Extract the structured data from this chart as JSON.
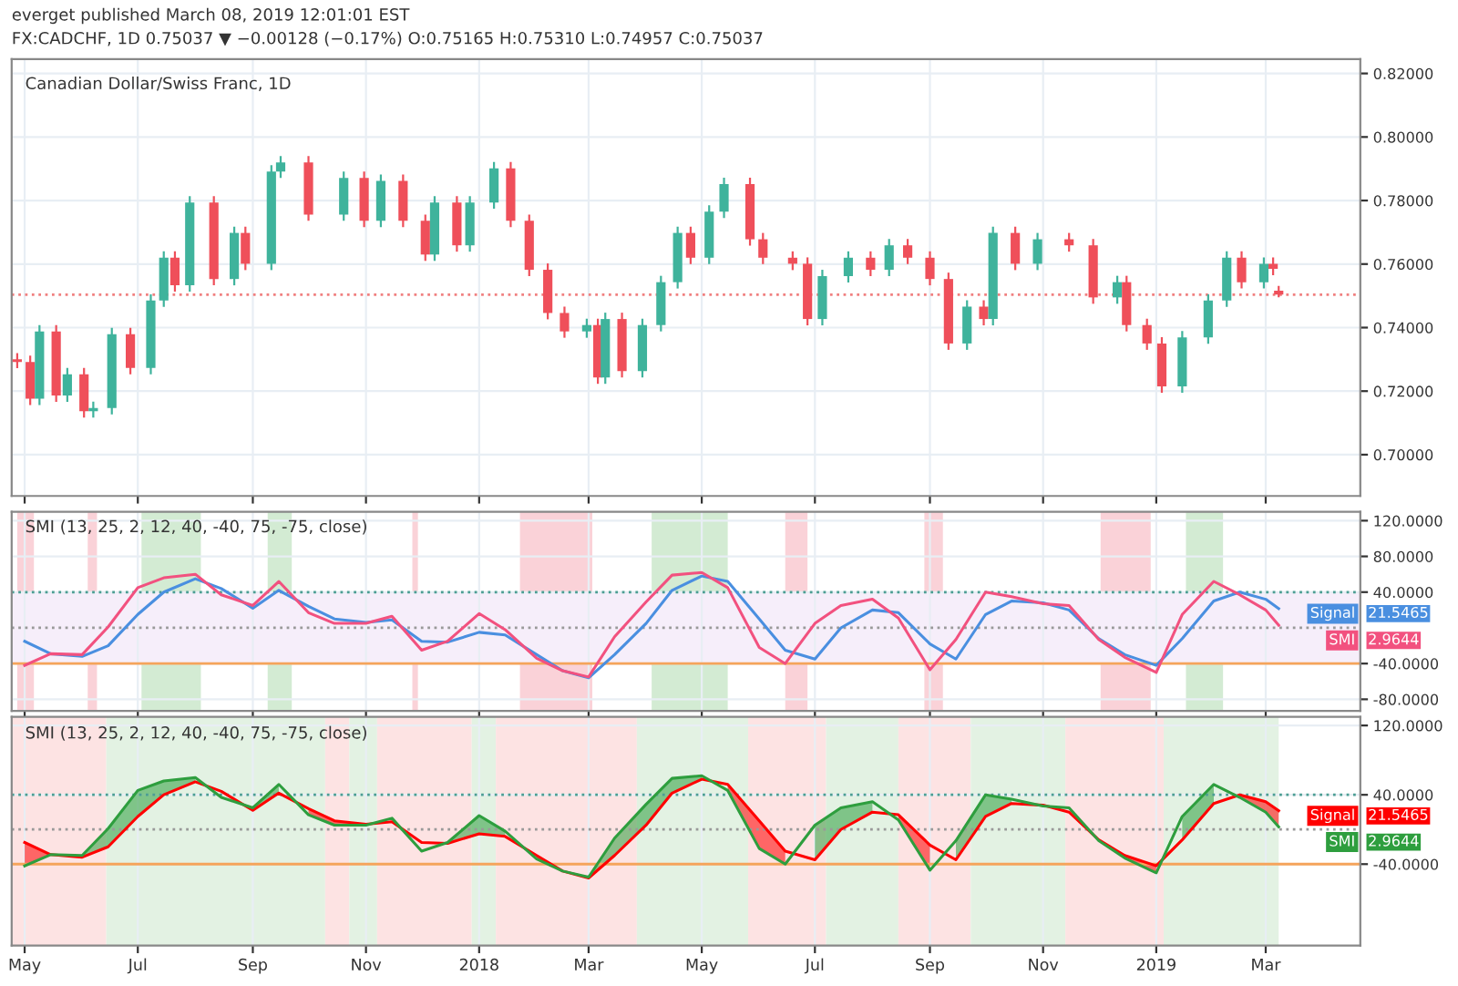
{
  "chart_data": [
    {
      "type": "candlestick",
      "title": "Canadian Dollar/Swiss Franc, 1D",
      "annotations": [
        "everget published March 08, 2019 12:01:01 EST",
        "FX:CADCHF, 1D 0.75037 ▼ −0.00128 (−0.17%) O:0.75165 H:0.75310 L:0.74957 C:0.75037"
      ],
      "x": [
        "2017-04-27",
        "2017-05-04",
        "2017-05-09",
        "2017-05-18",
        "2017-05-24",
        "2017-06-02",
        "2017-06-07",
        "2017-06-17",
        "2017-06-27",
        "2017-07-08",
        "2017-07-15",
        "2017-07-21",
        "2017-07-29",
        "2017-08-11",
        "2017-08-22",
        "2017-08-28",
        "2017-09-11",
        "2017-09-16",
        "2017-10-01",
        "2017-10-20",
        "2017-10-31",
        "2017-11-09",
        "2017-11-21",
        "2017-12-03",
        "2017-12-08",
        "2017-12-20",
        "2017-12-27",
        "2018-01-09",
        "2018-01-18",
        "2018-01-28",
        "2018-02-07",
        "2018-02-16",
        "2018-02-28",
        "2018-03-06",
        "2018-03-10",
        "2018-03-19",
        "2018-03-30",
        "2018-04-09",
        "2018-04-18",
        "2018-04-25",
        "2018-05-05",
        "2018-05-13",
        "2018-05-27",
        "2018-06-03",
        "2018-06-19",
        "2018-06-27",
        "2018-07-05",
        "2018-07-19",
        "2018-07-31",
        "2018-08-10",
        "2018-08-20",
        "2018-09-01",
        "2018-09-11",
        "2018-09-21",
        "2018-09-30",
        "2018-10-05",
        "2018-10-17",
        "2018-10-29",
        "2018-11-15",
        "2018-11-28",
        "2018-12-11",
        "2018-12-16",
        "2018-12-27",
        "2019-01-04",
        "2019-01-15",
        "2019-01-29",
        "2019-02-08",
        "2019-02-16",
        "2019-02-28",
        "2019-03-05",
        "2019-03-08"
      ],
      "ohlc": [
        [
          0.73,
          0.732,
          0.7272,
          0.7292
        ],
        [
          0.7292,
          0.7312,
          0.7156,
          0.7176
        ],
        [
          0.7176,
          0.7408,
          0.7156,
          0.7388
        ],
        [
          0.7388,
          0.7408,
          0.7166,
          0.7186
        ],
        [
          0.7186,
          0.7273,
          0.7166,
          0.7253
        ],
        [
          0.7253,
          0.7273,
          0.7117,
          0.7137
        ],
        [
          0.7137,
          0.7167,
          0.7117,
          0.7147
        ],
        [
          0.7147,
          0.7399,
          0.7127,
          0.7379
        ],
        [
          0.7379,
          0.7399,
          0.7253,
          0.7273
        ],
        [
          0.7273,
          0.7505,
          0.7253,
          0.7485
        ],
        [
          0.7485,
          0.764,
          0.7465,
          0.762
        ],
        [
          0.762,
          0.764,
          0.7513,
          0.7533
        ],
        [
          0.7533,
          0.7814,
          0.7513,
          0.7794
        ],
        [
          0.7794,
          0.7814,
          0.7533,
          0.7553
        ],
        [
          0.7553,
          0.7718,
          0.7533,
          0.7698
        ],
        [
          0.7698,
          0.7718,
          0.7581,
          0.7601
        ],
        [
          0.7601,
          0.7911,
          0.7581,
          0.7891
        ],
        [
          0.7891,
          0.794,
          0.7871,
          0.792
        ],
        [
          0.792,
          0.794,
          0.7736,
          0.7756
        ],
        [
          0.7756,
          0.7891,
          0.7736,
          0.7871
        ],
        [
          0.7871,
          0.7891,
          0.7716,
          0.7736
        ],
        [
          0.7736,
          0.7882,
          0.7716,
          0.7862
        ],
        [
          0.7862,
          0.7882,
          0.7716,
          0.7736
        ],
        [
          0.7736,
          0.7756,
          0.761,
          0.763
        ],
        [
          0.763,
          0.7814,
          0.761,
          0.7794
        ],
        [
          0.7794,
          0.7814,
          0.7639,
          0.7659
        ],
        [
          0.7659,
          0.7814,
          0.7639,
          0.7794
        ],
        [
          0.7794,
          0.7921,
          0.7774,
          0.7901
        ],
        [
          0.7901,
          0.7921,
          0.7716,
          0.7736
        ],
        [
          0.7736,
          0.7756,
          0.7562,
          0.7582
        ],
        [
          0.7582,
          0.7602,
          0.7426,
          0.7446
        ],
        [
          0.7446,
          0.7466,
          0.7368,
          0.7388
        ],
        [
          0.7388,
          0.7428,
          0.7368,
          0.7408
        ],
        [
          0.7408,
          0.7428,
          0.7223,
          0.7243
        ],
        [
          0.7243,
          0.7447,
          0.7223,
          0.7427
        ],
        [
          0.7427,
          0.7447,
          0.7243,
          0.7263
        ],
        [
          0.7263,
          0.7428,
          0.7243,
          0.7408
        ],
        [
          0.7408,
          0.7563,
          0.7388,
          0.7543
        ],
        [
          0.7543,
          0.7718,
          0.7523,
          0.7698
        ],
        [
          0.7698,
          0.7718,
          0.76,
          0.762
        ],
        [
          0.762,
          0.7785,
          0.76,
          0.7765
        ],
        [
          0.7765,
          0.7872,
          0.7745,
          0.7852
        ],
        [
          0.7852,
          0.7872,
          0.7658,
          0.7678
        ],
        [
          0.7678,
          0.7698,
          0.76,
          0.762
        ],
        [
          0.762,
          0.764,
          0.7581,
          0.7601
        ],
        [
          0.7601,
          0.7621,
          0.7407,
          0.7427
        ],
        [
          0.7427,
          0.7582,
          0.7407,
          0.7562
        ],
        [
          0.7562,
          0.764,
          0.7542,
          0.762
        ],
        [
          0.762,
          0.764,
          0.7562,
          0.7582
        ],
        [
          0.7582,
          0.7679,
          0.7562,
          0.7659
        ],
        [
          0.7659,
          0.7679,
          0.76,
          0.762
        ],
        [
          0.762,
          0.764,
          0.7533,
          0.7553
        ],
        [
          0.7553,
          0.7573,
          0.733,
          0.735
        ],
        [
          0.735,
          0.7486,
          0.733,
          0.7466
        ],
        [
          0.7466,
          0.7486,
          0.7407,
          0.7427
        ],
        [
          0.7427,
          0.7718,
          0.7407,
          0.7698
        ],
        [
          0.7698,
          0.7718,
          0.7581,
          0.7601
        ],
        [
          0.7601,
          0.7698,
          0.7581,
          0.7678
        ],
        [
          0.7678,
          0.7698,
          0.7639,
          0.7659
        ],
        [
          0.7659,
          0.7679,
          0.7475,
          0.7495
        ],
        [
          0.7495,
          0.7563,
          0.7475,
          0.7543
        ],
        [
          0.7543,
          0.7563,
          0.7388,
          0.7408
        ],
        [
          0.7408,
          0.7428,
          0.733,
          0.735
        ],
        [
          0.735,
          0.737,
          0.7195,
          0.7215
        ],
        [
          0.7215,
          0.7389,
          0.7195,
          0.7369
        ],
        [
          0.7369,
          0.7505,
          0.7349,
          0.7485
        ],
        [
          0.7485,
          0.764,
          0.7465,
          0.762
        ],
        [
          0.762,
          0.764,
          0.7523,
          0.7543
        ],
        [
          0.7543,
          0.7621,
          0.7523,
          0.7601
        ],
        [
          0.7601,
          0.7621,
          0.7565,
          0.7585
        ],
        [
          0.75165,
          0.7531,
          0.74957,
          0.75037
        ]
      ],
      "xlim": [
        "2017-04-24",
        "2019-04-21"
      ],
      "xticks": [
        {
          "value": "2017-05-01",
          "label": null
        },
        {
          "value": "2017-07-01",
          "label": null
        },
        {
          "value": "2017-09-01",
          "label": null
        },
        {
          "value": "2017-11-01",
          "label": null
        },
        {
          "value": "2018-01-01",
          "label": null
        },
        {
          "value": "2018-03-01",
          "label": null
        },
        {
          "value": "2018-05-01",
          "label": null
        },
        {
          "value": "2018-07-01",
          "label": null
        },
        {
          "value": "2018-09-01",
          "label": null
        },
        {
          "value": "2018-11-01",
          "label": null
        },
        {
          "value": "2019-01-01",
          "label": null
        },
        {
          "value": "2019-03-01",
          "label": null
        }
      ],
      "ylim": [
        0.687,
        0.8245
      ],
      "yticks": [
        {
          "value": 0.7,
          "label": "0.70000"
        },
        {
          "value": 0.72,
          "label": "0.72000"
        },
        {
          "value": 0.74,
          "label": "0.74000"
        },
        {
          "value": 0.76,
          "label": "0.76000"
        },
        {
          "value": 0.78,
          "label": "0.78000"
        },
        {
          "value": 0.8,
          "label": "0.80000"
        },
        {
          "value": 0.82,
          "label": "0.82000"
        }
      ],
      "ref_lines": [
        {
          "axis": "y",
          "value": 0.75037,
          "color": "#f08080",
          "line_style": "dotted"
        }
      ],
      "grid": true,
      "tick_labels": "y"
    },
    {
      "type": "line",
      "title": "SMI (13, 25, 2, 12, 40, -40, 75, -75, close)",
      "x": [
        "2017-05-01",
        "2017-05-15",
        "2017-06-01",
        "2017-06-15",
        "2017-07-01",
        "2017-07-15",
        "2017-08-01",
        "2017-08-15",
        "2017-09-01",
        "2017-09-15",
        "2017-10-01",
        "2017-10-15",
        "2017-11-01",
        "2017-11-15",
        "2017-12-01",
        "2017-12-15",
        "2018-01-01",
        "2018-01-15",
        "2018-02-01",
        "2018-02-15",
        "2018-03-01",
        "2018-03-15",
        "2018-04-01",
        "2018-04-15",
        "2018-05-01",
        "2018-05-15",
        "2018-06-01",
        "2018-06-15",
        "2018-07-01",
        "2018-07-15",
        "2018-08-01",
        "2018-08-15",
        "2018-09-01",
        "2018-09-15",
        "2018-10-01",
        "2018-10-15",
        "2018-11-01",
        "2018-11-15",
        "2018-12-01",
        "2018-12-15",
        "2019-01-01",
        "2019-01-15",
        "2019-02-01",
        "2019-02-15",
        "2019-03-01",
        "2019-03-08"
      ],
      "series": [
        {
          "name": "Signal",
          "color": "#4a8fe0",
          "values": [
            -15,
            -29,
            -32,
            -20,
            15,
            40,
            55,
            44,
            22,
            42,
            24,
            10,
            6,
            9,
            -15,
            -16,
            -5,
            -8,
            -30,
            -48,
            -56,
            -30,
            5,
            42,
            58,
            52,
            10,
            -25,
            -35,
            0,
            20,
            17,
            -18,
            -35,
            15,
            30,
            28,
            20,
            -12,
            -30,
            -42,
            -12,
            30,
            40,
            32,
            21.5465
          ]
        },
        {
          "name": "SMI",
          "color": "#f2517f",
          "values": [
            -42,
            -29,
            -30,
            1,
            45,
            56,
            60,
            37,
            25,
            52,
            17,
            5,
            5,
            13,
            -25,
            -15,
            16,
            -2,
            -34,
            -48,
            -55,
            -10,
            29,
            59,
            62,
            45,
            -22,
            -40,
            5,
            25,
            32,
            11,
            -47,
            -13,
            40,
            35,
            27,
            25,
            -13,
            -33,
            -50,
            15,
            52,
            37,
            20,
            2.9644
          ]
        }
      ],
      "annotations": [
        "21.5465",
        "2.9644"
      ],
      "xlim": [
        "2017-04-24",
        "2019-04-21"
      ],
      "xticks": [
        {
          "value": "2017-05-01",
          "label": null
        },
        {
          "value": "2017-07-01",
          "label": null
        },
        {
          "value": "2017-09-01",
          "label": null
        },
        {
          "value": "2017-11-01",
          "label": null
        },
        {
          "value": "2018-01-01",
          "label": null
        },
        {
          "value": "2018-03-01",
          "label": null
        },
        {
          "value": "2018-05-01",
          "label": null
        },
        {
          "value": "2018-07-01",
          "label": null
        },
        {
          "value": "2018-09-01",
          "label": null
        },
        {
          "value": "2018-11-01",
          "label": null
        },
        {
          "value": "2019-01-01",
          "label": null
        },
        {
          "value": "2019-03-01",
          "label": null
        }
      ],
      "ylim": [
        -93,
        130
      ],
      "yticks": [
        {
          "value": -80,
          "label": "-80.0000"
        },
        {
          "value": -40,
          "label": "-40.0000"
        },
        {
          "value": 40,
          "label": "40.0000"
        },
        {
          "value": 80,
          "label": "80.0000"
        },
        {
          "value": 120,
          "label": "120.0000"
        }
      ],
      "ref_lines": [
        {
          "axis": "y",
          "value": 40,
          "color": "#4c9e93",
          "line_style": "dotted"
        },
        {
          "axis": "y",
          "value": 0,
          "color": "#999999",
          "line_style": "dotted"
        },
        {
          "axis": "y",
          "value": -40,
          "color": "#f5a45b",
          "line_style": "solid"
        }
      ],
      "bands": [
        {
          "axis": "y",
          "from": -40,
          "to": 40,
          "color": "#f6eefa"
        },
        {
          "axis": "x",
          "from": "2017-07-03",
          "to": "2017-08-04",
          "color": "#d3ebd3"
        },
        {
          "axis": "x",
          "from": "2017-09-09",
          "to": "2017-09-22",
          "color": "#d3ebd3"
        },
        {
          "axis": "x",
          "from": "2018-04-04",
          "to": "2018-05-15",
          "color": "#d3ebd3"
        },
        {
          "axis": "x",
          "from": "2019-01-17",
          "to": "2019-02-06",
          "color": "#d3ebd3"
        },
        {
          "axis": "x",
          "from": "2017-04-27",
          "to": "2017-05-06",
          "color": "#fad2d8"
        },
        {
          "axis": "x",
          "from": "2017-06-04",
          "to": "2017-06-09",
          "color": "#fad2d8"
        },
        {
          "axis": "x",
          "from": "2017-11-26",
          "to": "2017-11-29",
          "color": "#fad2d8"
        },
        {
          "axis": "x",
          "from": "2018-01-23",
          "to": "2018-03-03",
          "color": "#fad2d8"
        },
        {
          "axis": "x",
          "from": "2018-06-15",
          "to": "2018-06-27",
          "color": "#fad2d8"
        },
        {
          "axis": "x",
          "from": "2018-08-29",
          "to": "2018-09-08",
          "color": "#fad2d8"
        },
        {
          "axis": "x",
          "from": "2018-12-02",
          "to": "2018-12-29",
          "color": "#fad2d8"
        }
      ],
      "grid": true,
      "tick_labels": "y",
      "legend": "right"
    },
    {
      "type": "line",
      "title": "SMI (13, 25, 2, 12, 40, -40, 75, -75, close)",
      "x": [
        "2017-05-01",
        "2017-05-15",
        "2017-06-01",
        "2017-06-15",
        "2017-07-01",
        "2017-07-15",
        "2017-08-01",
        "2017-08-15",
        "2017-09-01",
        "2017-09-15",
        "2017-10-01",
        "2017-10-15",
        "2017-11-01",
        "2017-11-15",
        "2017-12-01",
        "2017-12-15",
        "2018-01-01",
        "2018-01-15",
        "2018-02-01",
        "2018-02-15",
        "2018-03-01",
        "2018-03-15",
        "2018-04-01",
        "2018-04-15",
        "2018-05-01",
        "2018-05-15",
        "2018-06-01",
        "2018-06-15",
        "2018-07-01",
        "2018-07-15",
        "2018-08-01",
        "2018-08-15",
        "2018-09-01",
        "2018-09-15",
        "2018-10-01",
        "2018-10-15",
        "2018-11-01",
        "2018-11-15",
        "2018-12-01",
        "2018-12-15",
        "2019-01-01",
        "2019-01-15",
        "2019-02-01",
        "2019-02-15",
        "2019-03-01",
        "2019-03-08"
      ],
      "series": [
        {
          "name": "Signal",
          "color": "#ff0000",
          "values": [
            -15,
            -29,
            -32,
            -20,
            15,
            40,
            55,
            44,
            22,
            42,
            24,
            10,
            6,
            9,
            -15,
            -16,
            -5,
            -8,
            -30,
            -48,
            -56,
            -30,
            5,
            42,
            58,
            52,
            10,
            -25,
            -35,
            0,
            20,
            17,
            -18,
            -35,
            15,
            30,
            28,
            20,
            -12,
            -30,
            -42,
            -12,
            30,
            40,
            32,
            21.5465
          ],
          "lower": [
            -42,
            -29,
            null,
            null,
            null,
            null,
            null,
            null,
            null,
            null,
            17,
            5,
            5,
            null,
            null,
            null,
            null,
            null,
            -34,
            -48,
            null,
            null,
            null,
            null,
            null,
            45,
            -22,
            -40,
            null,
            null,
            null,
            11,
            -47,
            null,
            null,
            null,
            null,
            null,
            -13,
            -33,
            -50,
            null,
            null,
            37,
            20,
            2.9644
          ],
          "upper": [
            -15,
            -29,
            null,
            null,
            null,
            null,
            null,
            null,
            null,
            null,
            24,
            10,
            6,
            null,
            null,
            null,
            null,
            null,
            -30,
            -48,
            null,
            null,
            null,
            null,
            null,
            52,
            10,
            -25,
            null,
            null,
            null,
            17,
            -18,
            null,
            null,
            null,
            null,
            null,
            -12,
            -30,
            -42,
            null,
            null,
            40,
            32,
            21.5465
          ]
        },
        {
          "name": "SMI",
          "color": "#2e9e3e",
          "values": [
            -42,
            -29,
            -30,
            1,
            45,
            56,
            60,
            37,
            25,
            52,
            17,
            5,
            5,
            13,
            -25,
            -15,
            16,
            -2,
            -34,
            -48,
            -55,
            -10,
            29,
            59,
            62,
            45,
            -22,
            -40,
            5,
            25,
            32,
            11,
            -47,
            -13,
            40,
            35,
            27,
            25,
            -13,
            -33,
            -50,
            15,
            52,
            37,
            20,
            2.9644
          ],
          "lower": [
            null,
            -29,
            -32,
            -20,
            15,
            40,
            55,
            null,
            22,
            42,
            null,
            null,
            null,
            null,
            null,
            -16,
            -5,
            -8,
            null,
            -48,
            -56,
            -30,
            5,
            42,
            58,
            null,
            null,
            null,
            -35,
            0,
            20,
            null,
            null,
            -35,
            15,
            30,
            null,
            null,
            null,
            null,
            null,
            -12,
            30,
            null,
            null,
            null
          ],
          "upper": [
            null,
            -29,
            -30,
            1,
            45,
            56,
            60,
            null,
            25,
            52,
            null,
            null,
            null,
            null,
            null,
            -15,
            16,
            -2,
            null,
            -48,
            -55,
            -10,
            29,
            59,
            62,
            null,
            null,
            null,
            5,
            25,
            32,
            null,
            null,
            -13,
            40,
            35,
            null,
            null,
            null,
            null,
            null,
            15,
            52,
            null,
            null,
            null
          ]
        }
      ],
      "annotations": [
        "21.5465",
        "2.9644"
      ],
      "xlim": [
        "2017-04-24",
        "2019-04-21"
      ],
      "xticks": [
        {
          "value": "2017-05-01",
          "label": "May"
        },
        {
          "value": "2017-07-01",
          "label": "Jul"
        },
        {
          "value": "2017-09-01",
          "label": "Sep"
        },
        {
          "value": "2017-11-01",
          "label": "Nov"
        },
        {
          "value": "2018-01-01",
          "label": "2018"
        },
        {
          "value": "2018-03-01",
          "label": "Mar"
        },
        {
          "value": "2018-05-01",
          "label": "May"
        },
        {
          "value": "2018-07-01",
          "label": "Jul"
        },
        {
          "value": "2018-09-01",
          "label": "Sep"
        },
        {
          "value": "2018-11-01",
          "label": "Nov"
        },
        {
          "value": "2019-01-01",
          "label": "2019"
        },
        {
          "value": "2019-03-01",
          "label": "Mar"
        }
      ],
      "ylim": [
        -134,
        130
      ],
      "yticks": [
        {
          "value": -40,
          "label": "-40.0000"
        },
        {
          "value": 40,
          "label": "40.0000"
        },
        {
          "value": 120,
          "label": "120.0000"
        }
      ],
      "ref_lines": [
        {
          "axis": "y",
          "value": 40,
          "color": "#4c9e93",
          "line_style": "dotted"
        },
        {
          "axis": "y",
          "value": 0,
          "color": "#999999",
          "line_style": "dotted"
        },
        {
          "axis": "y",
          "value": -40,
          "color": "#f5a45b",
          "line_style": "solid"
        }
      ],
      "bands": [
        {
          "axis": "x",
          "from": "2017-04-24",
          "to": "2017-06-14",
          "color": "#fde3e3"
        },
        {
          "axis": "x",
          "from": "2017-06-14",
          "to": "2017-10-10",
          "color": "#e3f2e3"
        },
        {
          "axis": "x",
          "from": "2017-10-10",
          "to": "2017-10-23",
          "color": "#fde3e3"
        },
        {
          "axis": "x",
          "from": "2017-10-23",
          "to": "2017-11-07",
          "color": "#e3f2e3"
        },
        {
          "axis": "x",
          "from": "2017-11-07",
          "to": "2017-12-28",
          "color": "#fde3e3"
        },
        {
          "axis": "x",
          "from": "2017-12-28",
          "to": "2018-01-10",
          "color": "#e3f2e3"
        },
        {
          "axis": "x",
          "from": "2018-01-10",
          "to": "2018-03-27",
          "color": "#fde3e3"
        },
        {
          "axis": "x",
          "from": "2018-03-27",
          "to": "2018-05-26",
          "color": "#e3f2e3"
        },
        {
          "axis": "x",
          "from": "2018-05-26",
          "to": "2018-07-07",
          "color": "#fde3e3"
        },
        {
          "axis": "x",
          "from": "2018-07-07",
          "to": "2018-08-15",
          "color": "#e3f2e3"
        },
        {
          "axis": "x",
          "from": "2018-08-15",
          "to": "2018-09-23",
          "color": "#fde3e3"
        },
        {
          "axis": "x",
          "from": "2018-09-23",
          "to": "2018-11-13",
          "color": "#e3f2e3"
        },
        {
          "axis": "x",
          "from": "2018-11-13",
          "to": "2019-01-05",
          "color": "#fde3e3"
        },
        {
          "axis": "x",
          "from": "2019-01-05",
          "to": "2019-03-08",
          "color": "#e3f2e3"
        }
      ],
      "grid": true,
      "legend": "right"
    }
  ]
}
